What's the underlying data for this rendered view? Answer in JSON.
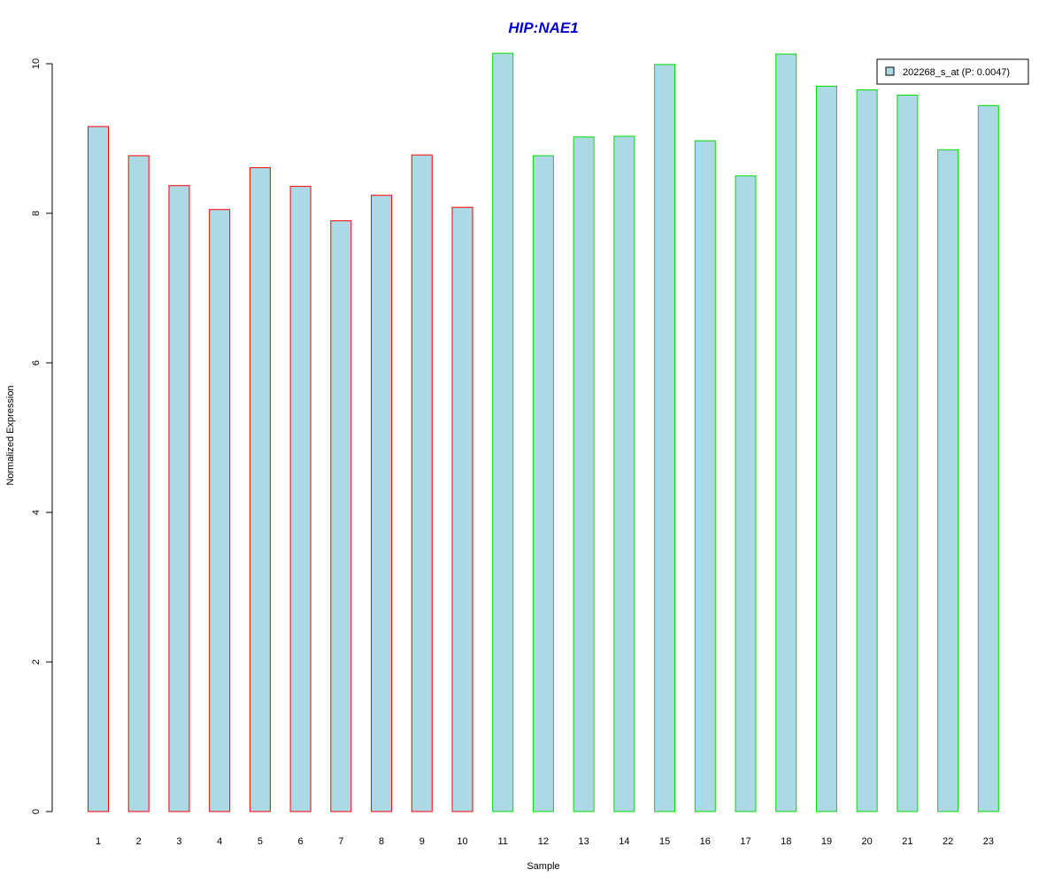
{
  "chart_data": {
    "type": "bar",
    "title": "HIP:NAE1",
    "xlabel": "Sample",
    "ylabel": "Normalized Expression",
    "ylim": [
      0,
      10
    ],
    "yticks": [
      0,
      2,
      4,
      6,
      8,
      10
    ],
    "categories": [
      "1",
      "2",
      "3",
      "4",
      "5",
      "6",
      "7",
      "8",
      "9",
      "10",
      "11",
      "12",
      "13",
      "14",
      "15",
      "16",
      "17",
      "18",
      "19",
      "20",
      "21",
      "22",
      "23"
    ],
    "series": [
      {
        "name": "202268_s_at (P: 0.0047)",
        "values": [
          9.16,
          8.77,
          8.37,
          8.05,
          8.61,
          8.36,
          7.9,
          8.24,
          8.78,
          8.08,
          10.14,
          8.77,
          9.02,
          9.03,
          9.99,
          8.97,
          8.5,
          10.13,
          9.7,
          9.65,
          9.58,
          8.85,
          9.44
        ]
      }
    ],
    "group_of_bar": [
      "red",
      "red",
      "red",
      "red",
      "red",
      "red",
      "red",
      "red",
      "red",
      "red",
      "green",
      "green",
      "green",
      "green",
      "green",
      "green",
      "green",
      "green",
      "green",
      "green",
      "green",
      "green",
      "green"
    ],
    "legend_placement": "top-right",
    "grid": false
  },
  "colors": {
    "title": "#0000CC",
    "bar_fill": "#ADD8E6",
    "red": "#FF0000",
    "green": "#00DD00",
    "axis": "#000000"
  }
}
